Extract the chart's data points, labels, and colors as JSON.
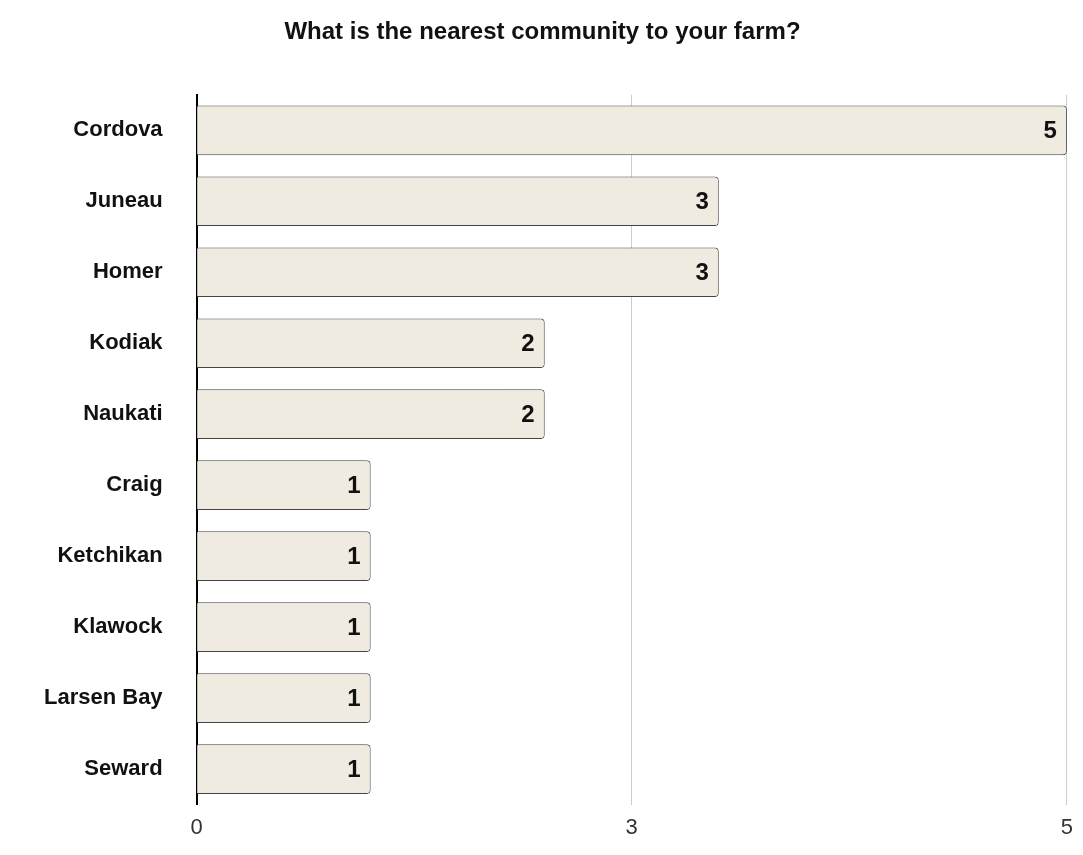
{
  "chart_data": {
    "type": "bar",
    "orientation": "horizontal",
    "title": "What is the nearest community to your farm?",
    "categories": [
      "Cordova",
      "Juneau",
      "Homer",
      "Kodiak",
      "Naukati",
      "Craig",
      "Ketchikan",
      "Klawock",
      "Larsen Bay",
      "Seward"
    ],
    "values": [
      5,
      3,
      3,
      2,
      2,
      1,
      1,
      1,
      1,
      1
    ],
    "color": "#f0ebe0",
    "xlim": [
      0,
      5
    ],
    "xticks": [
      0,
      {
        "value": 2.5,
        "label": "3"
      },
      5
    ],
    "grid": "x",
    "data_labels": true,
    "legend": false
  }
}
